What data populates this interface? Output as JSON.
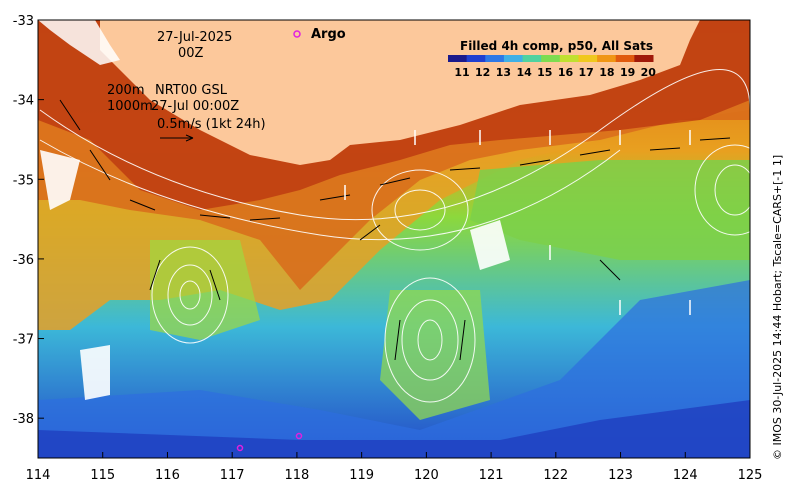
{
  "map": {
    "date_line": "27-Jul-2025",
    "time_line": "00Z",
    "depth_200": "200m",
    "depth_1000": "1000m",
    "product": "NRT00 GSL",
    "product_time": "27-Jul 00:00Z",
    "speed_scale": "0.5m/s (1kt 24h)",
    "argo_label": "Argo",
    "credit": "© IMOS 30-Jul-2025 14:44 Hobart; Tscale=CARS+[-1 1]",
    "x_ticks": [
      "114",
      "115",
      "116",
      "117",
      "118",
      "119",
      "120",
      "121",
      "122",
      "123",
      "124",
      "125"
    ],
    "y_ticks": [
      "-33",
      "-34",
      "-35",
      "-36",
      "-37",
      "-38"
    ],
    "x_range": [
      114,
      125
    ],
    "y_range": [
      -38.5,
      -33
    ]
  },
  "colorbar": {
    "title": "Filled 4h comp, p50, All Sats",
    "labels": [
      "11",
      "12",
      "13",
      "14",
      "15",
      "16",
      "17",
      "18",
      "19",
      "20"
    ],
    "colors": [
      "#1a1a8c",
      "#1f3fd0",
      "#2d78e6",
      "#3fb0e6",
      "#50d2a0",
      "#7ddc50",
      "#c0e030",
      "#f0c81e",
      "#f09614",
      "#e05a0f",
      "#a0190a"
    ]
  },
  "colors": {
    "land": "#fcc89b",
    "argo": "#e020e0"
  }
}
